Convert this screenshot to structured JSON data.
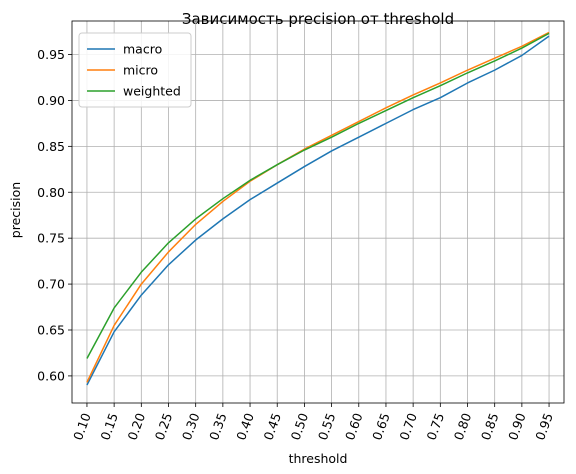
{
  "chart_data": {
    "type": "line",
    "title": "Зависимость precision от threshold",
    "xlabel": "threshold",
    "ylabel": "precision",
    "x": [
      0.1,
      0.15,
      0.2,
      0.25,
      0.3,
      0.35,
      0.4,
      0.45,
      0.5,
      0.55,
      0.6,
      0.65,
      0.7,
      0.75,
      0.8,
      0.85,
      0.9,
      0.95
    ],
    "x_tick_labels": [
      "0.10",
      "0.15",
      "0.20",
      "0.25",
      "0.30",
      "0.35",
      "0.40",
      "0.45",
      "0.50",
      "0.55",
      "0.60",
      "0.65",
      "0.70",
      "0.75",
      "0.80",
      "0.85",
      "0.90",
      "0.95"
    ],
    "y_ticks": [
      0.6,
      0.65,
      0.7,
      0.75,
      0.8,
      0.85,
      0.9,
      0.95
    ],
    "y_tick_labels": [
      "0.60",
      "0.65",
      "0.70",
      "0.75",
      "0.80",
      "0.85",
      "0.90",
      "0.95"
    ],
    "xlim": [
      0.0725,
      0.9775
    ],
    "ylim": [
      0.5705,
      0.9865
    ],
    "grid": true,
    "legend_position": "upper-left",
    "series": [
      {
        "name": "macro",
        "color": "#1f77b4",
        "values": [
          0.59,
          0.648,
          0.688,
          0.721,
          0.748,
          0.771,
          0.792,
          0.81,
          0.828,
          0.845,
          0.86,
          0.875,
          0.89,
          0.903,
          0.919,
          0.933,
          0.949,
          0.97
        ]
      },
      {
        "name": "micro",
        "color": "#ff7f0e",
        "values": [
          0.593,
          0.655,
          0.7,
          0.735,
          0.765,
          0.79,
          0.812,
          0.83,
          0.847,
          0.862,
          0.877,
          0.892,
          0.906,
          0.919,
          0.933,
          0.946,
          0.959,
          0.974
        ]
      },
      {
        "name": "weighted",
        "color": "#2ca02c",
        "values": [
          0.619,
          0.674,
          0.713,
          0.745,
          0.771,
          0.793,
          0.813,
          0.83,
          0.846,
          0.86,
          0.875,
          0.889,
          0.903,
          0.916,
          0.93,
          0.943,
          0.957,
          0.973
        ]
      }
    ]
  }
}
